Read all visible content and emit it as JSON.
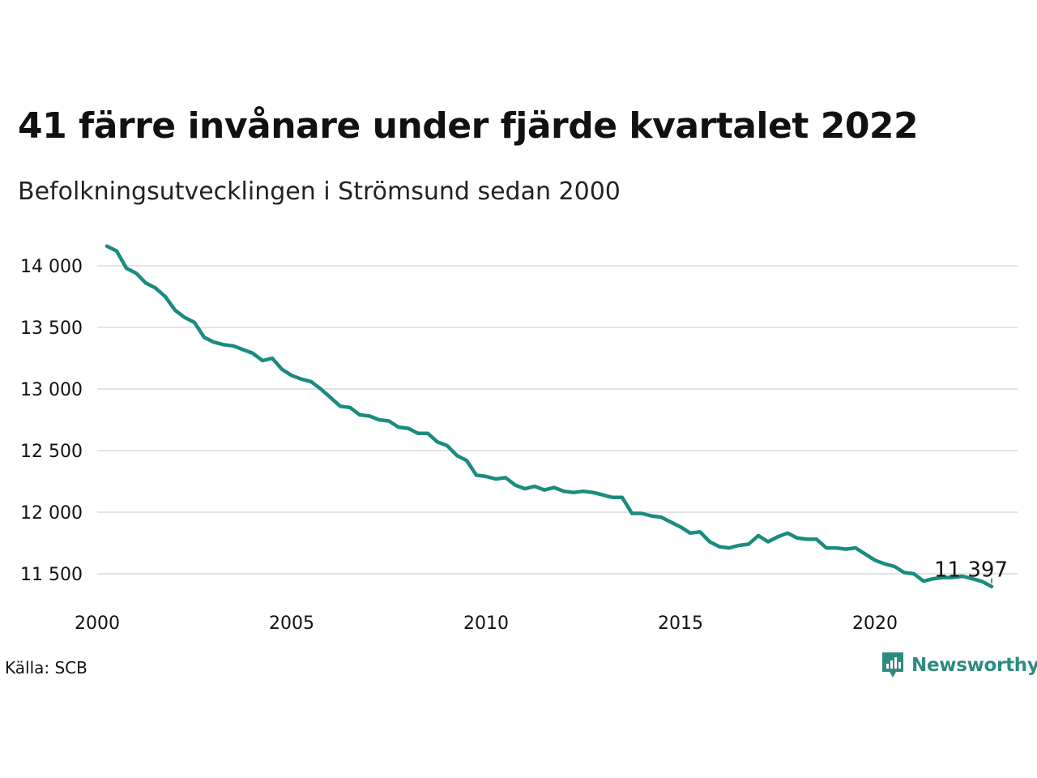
{
  "title": "41 färre invånare under fjärde kvartalet 2022",
  "subtitle": "Befolkningsutvecklingen i Strömsund sedan 2000",
  "source": "Källa: SCB",
  "brand": {
    "name": "Newsworthy",
    "icon": "newsworthy-logo-icon",
    "color": "#2e8b80"
  },
  "chart_data": {
    "type": "line",
    "title": "41 färre invånare under fjärde kvartalet 2022",
    "subtitle": "Befolkningsutvecklingen i Strömsund sedan 2000",
    "xlabel": "",
    "ylabel": "",
    "x_range": [
      2000,
      2023.5
    ],
    "ylim": [
      11250,
      14200
    ],
    "y_ticks": [
      11500,
      12000,
      12500,
      13000,
      13500,
      14000
    ],
    "y_tick_labels": [
      "11 500",
      "12 000",
      "12 500",
      "13 000",
      "13 500",
      "14 000"
    ],
    "x_ticks": [
      2000,
      2005,
      2010,
      2015,
      2020
    ],
    "x_tick_labels": [
      "2000",
      "2005",
      "2010",
      "2015",
      "2020"
    ],
    "grid": true,
    "line_color": "#1a8c7e",
    "end_label": "11 397",
    "series": [
      {
        "x": [
          2000.25,
          2000.5,
          2000.75,
          2001.0,
          2001.25,
          2001.5,
          2001.75,
          2002.0,
          2002.25,
          2002.5,
          2002.75,
          2003.0,
          2003.25,
          2003.5,
          2003.75,
          2004.0,
          2004.25,
          2004.5,
          2004.75,
          2005.0,
          2005.25,
          2005.5,
          2005.75,
          2006.0,
          2006.25,
          2006.5,
          2006.75,
          2007.0,
          2007.25,
          2007.5,
          2007.75,
          2008.0,
          2008.25,
          2008.5,
          2008.75,
          2009.0,
          2009.25,
          2009.5,
          2009.75,
          2010.0,
          2010.25,
          2010.5,
          2010.75,
          2011.0,
          2011.25,
          2011.5,
          2011.75,
          2012.0,
          2012.25,
          2012.5,
          2012.75,
          2013.0,
          2013.25,
          2013.5,
          2013.75,
          2014.0,
          2014.25,
          2014.5,
          2014.75,
          2015.0,
          2015.25,
          2015.5,
          2015.75,
          2016.0,
          2016.25,
          2016.5,
          2016.75,
          2017.0,
          2017.25,
          2017.5,
          2017.75,
          2018.0,
          2018.25,
          2018.5,
          2018.75,
          2019.0,
          2019.25,
          2019.5,
          2019.75,
          2020.0,
          2020.25,
          2020.5,
          2020.75,
          2021.0,
          2021.25,
          2021.5,
          2021.75,
          2022.0,
          2022.25,
          2022.5,
          2022.75,
          2023.0
        ],
        "values": [
          14160,
          14120,
          13980,
          13940,
          13860,
          13820,
          13750,
          13640,
          13580,
          13540,
          13420,
          13380,
          13360,
          13350,
          13320,
          13290,
          13230,
          13250,
          13160,
          13110,
          13080,
          13060,
          13000,
          12930,
          12860,
          12850,
          12790,
          12780,
          12750,
          12740,
          12690,
          12680,
          12640,
          12640,
          12570,
          12540,
          12460,
          12420,
          12300,
          12290,
          12270,
          12280,
          12220,
          12190,
          12210,
          12180,
          12200,
          12170,
          12160,
          12170,
          12160,
          12140,
          12120,
          12120,
          11990,
          11990,
          11970,
          11960,
          11920,
          11880,
          11830,
          11840,
          11760,
          11720,
          11710,
          11730,
          11740,
          11810,
          11760,
          11800,
          11830,
          11790,
          11780,
          11780,
          11710,
          11710,
          11700,
          11710,
          11660,
          11610,
          11580,
          11560,
          11510,
          11500,
          11440,
          11460,
          11470,
          11470,
          11480,
          11460,
          11438,
          11397
        ]
      }
    ]
  }
}
